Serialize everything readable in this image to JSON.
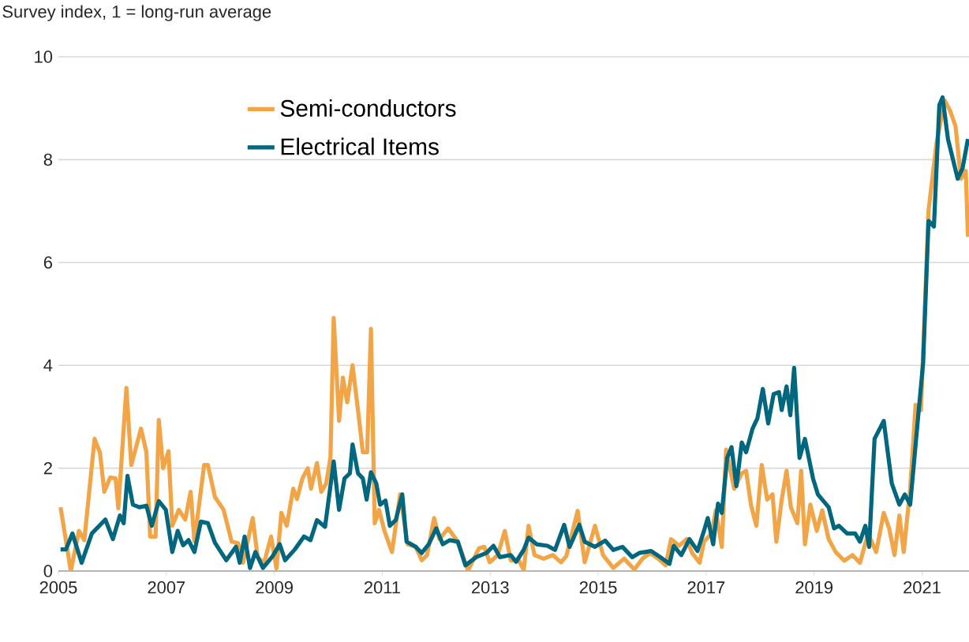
{
  "chart_data": {
    "type": "line",
    "ylabel": "Survey index, 1 = long-run average",
    "xlim": [
      2005,
      2021.87
    ],
    "xticks": [
      2005,
      2007,
      2009,
      2011,
      2013,
      2015,
      2017,
      2019,
      2021
    ],
    "ylim": [
      0,
      10
    ],
    "yticks": [
      0,
      2,
      4,
      6,
      8,
      10
    ],
    "grid": "y",
    "legend": "top left",
    "line_style": "solid",
    "marker": "none",
    "series": [
      {
        "name": "Semi-conductors",
        "color": "#f2a546",
        "x": [
          2005.04,
          2005.23,
          2005.38,
          2005.48,
          2005.67,
          2005.77,
          2005.85,
          2005.96,
          2006.06,
          2006.11,
          2006.26,
          2006.35,
          2006.53,
          2006.63,
          2006.7,
          2006.8,
          2006.86,
          2006.94,
          2007.04,
          2007.11,
          2007.23,
          2007.35,
          2007.45,
          2007.52,
          2007.7,
          2007.77,
          2007.9,
          2008.06,
          2008.21,
          2008.33,
          2008.42,
          2008.6,
          2008.69,
          2008.81,
          2008.94,
          2009.04,
          2009.13,
          2009.23,
          2009.35,
          2009.42,
          2009.52,
          2009.62,
          2009.68,
          2009.79,
          2009.87,
          2009.96,
          2010.04,
          2010.1,
          2010.2,
          2010.27,
          2010.35,
          2010.45,
          2010.55,
          2010.64,
          2010.72,
          2010.79,
          2010.86,
          2010.94,
          2011.04,
          2011.18,
          2011.33,
          2011.47,
          2011.62,
          2011.73,
          2011.83,
          2011.96,
          2012.06,
          2012.22,
          2012.4,
          2012.59,
          2012.79,
          2012.89,
          2012.99,
          2013.14,
          2013.27,
          2013.38,
          2013.53,
          2013.62,
          2013.71,
          2013.82,
          2013.99,
          2014.16,
          2014.31,
          2014.41,
          2014.62,
          2014.75,
          2014.94,
          2015.09,
          2015.28,
          2015.48,
          2015.67,
          2015.82,
          2015.96,
          2016.11,
          2016.25,
          2016.35,
          2016.5,
          2016.64,
          2016.74,
          2016.88,
          2016.96,
          2017.1,
          2017.18,
          2017.29,
          2017.37,
          2017.52,
          2017.66,
          2017.74,
          2017.83,
          2017.93,
          2018.03,
          2018.13,
          2018.23,
          2018.3,
          2018.4,
          2018.49,
          2018.57,
          2018.69,
          2018.76,
          2018.83,
          2018.93,
          2019.05,
          2019.15,
          2019.27,
          2019.4,
          2019.56,
          2019.71,
          2019.85,
          2020.0,
          2020.15,
          2020.29,
          2020.39,
          2020.49,
          2020.58,
          2020.66,
          2020.78,
          2020.88,
          2020.98,
          2021.12,
          2021.27,
          2021.42,
          2021.52,
          2021.62,
          2021.72,
          2021.81,
          2021.85
        ],
        "values": [
          1.24,
          0.0,
          0.78,
          0.6,
          2.57,
          2.3,
          1.54,
          1.82,
          1.8,
          1.22,
          3.56,
          2.06,
          2.77,
          2.31,
          0.67,
          0.67,
          2.94,
          2.0,
          2.33,
          0.88,
          1.19,
          1.0,
          1.54,
          0.58,
          2.06,
          2.06,
          1.44,
          1.19,
          0.57,
          0.54,
          0.16,
          1.03,
          0.27,
          0.16,
          0.67,
          0.05,
          1.13,
          0.88,
          1.6,
          1.4,
          1.8,
          2.0,
          1.6,
          2.1,
          1.54,
          1.7,
          2.2,
          4.92,
          2.92,
          3.76,
          3.28,
          4.0,
          3.13,
          2.31,
          2.31,
          4.71,
          0.93,
          1.19,
          0.78,
          0.37,
          1.49,
          0.52,
          0.47,
          0.21,
          0.31,
          1.03,
          0.62,
          0.83,
          0.57,
          0.01,
          0.44,
          0.47,
          0.17,
          0.31,
          0.78,
          0.21,
          0.21,
          0.02,
          0.88,
          0.31,
          0.24,
          0.31,
          0.17,
          0.29,
          1.17,
          0.17,
          0.88,
          0.31,
          0.06,
          0.24,
          0.03,
          0.24,
          0.35,
          0.24,
          0.11,
          0.62,
          0.49,
          0.62,
          0.35,
          0.16,
          0.57,
          0.73,
          1.18,
          0.47,
          2.36,
          1.6,
          1.9,
          1.95,
          1.29,
          0.88,
          2.06,
          1.39,
          1.49,
          0.57,
          1.39,
          1.95,
          1.24,
          0.93,
          1.95,
          0.52,
          1.29,
          0.78,
          1.18,
          0.62,
          0.37,
          0.2,
          0.31,
          0.16,
          0.73,
          0.37,
          1.13,
          0.83,
          0.31,
          1.08,
          0.37,
          1.6,
          3.23,
          3.13,
          7.01,
          8.34,
          9.15,
          8.95,
          8.65,
          7.63,
          7.78,
          6.5
        ]
      },
      {
        "name": "Electrical Items",
        "color": "#00677f",
        "x": [
          2005.04,
          2005.14,
          2005.26,
          2005.43,
          2005.62,
          2005.87,
          2006.01,
          2006.14,
          2006.21,
          2006.28,
          2006.38,
          2006.5,
          2006.63,
          2006.73,
          2006.86,
          2006.99,
          2007.11,
          2007.21,
          2007.31,
          2007.41,
          2007.52,
          2007.64,
          2007.77,
          2007.9,
          2008.11,
          2008.29,
          2008.36,
          2008.45,
          2008.55,
          2008.65,
          2008.79,
          2008.97,
          2009.1,
          2009.2,
          2009.38,
          2009.55,
          2009.67,
          2009.79,
          2009.94,
          2010.1,
          2010.2,
          2010.3,
          2010.4,
          2010.45,
          2010.55,
          2010.64,
          2010.71,
          2010.79,
          2010.89,
          2010.96,
          2011.06,
          2011.14,
          2011.25,
          2011.37,
          2011.45,
          2011.62,
          2011.73,
          2011.86,
          2012.0,
          2012.12,
          2012.25,
          2012.4,
          2012.54,
          2012.74,
          2012.93,
          2013.06,
          2013.18,
          2013.38,
          2013.48,
          2013.62,
          2013.71,
          2013.86,
          2014.06,
          2014.2,
          2014.37,
          2014.47,
          2014.65,
          2014.75,
          2014.94,
          2015.13,
          2015.28,
          2015.45,
          2015.63,
          2015.76,
          2015.98,
          2016.15,
          2016.32,
          2016.4,
          2016.54,
          2016.69,
          2016.84,
          2016.96,
          2017.03,
          2017.13,
          2017.22,
          2017.29,
          2017.39,
          2017.47,
          2017.56,
          2017.66,
          2017.74,
          2017.86,
          2017.95,
          2018.05,
          2018.15,
          2018.25,
          2018.35,
          2018.4,
          2018.49,
          2018.56,
          2018.63,
          2018.73,
          2018.83,
          2018.98,
          2019.07,
          2019.27,
          2019.37,
          2019.46,
          2019.61,
          2019.76,
          2019.85,
          2019.95,
          2020.02,
          2020.12,
          2020.29,
          2020.44,
          2020.58,
          2020.68,
          2020.78,
          2020.93,
          2021.02,
          2021.12,
          2021.22,
          2021.32,
          2021.38,
          2021.48,
          2021.66,
          2021.75,
          2021.85
        ],
        "values": [
          0.42,
          0.42,
          0.73,
          0.16,
          0.73,
          1.0,
          0.62,
          1.08,
          0.93,
          1.85,
          1.29,
          1.24,
          1.27,
          0.88,
          1.36,
          1.19,
          0.37,
          0.78,
          0.5,
          0.6,
          0.37,
          0.96,
          0.93,
          0.55,
          0.21,
          0.47,
          0.16,
          0.67,
          0.06,
          0.37,
          0.06,
          0.29,
          0.52,
          0.21,
          0.42,
          0.67,
          0.6,
          0.99,
          0.86,
          2.13,
          1.19,
          1.8,
          1.9,
          2.46,
          1.9,
          1.8,
          1.39,
          1.92,
          1.7,
          1.29,
          1.37,
          0.88,
          0.99,
          1.49,
          0.57,
          0.47,
          0.35,
          0.52,
          0.83,
          0.52,
          0.6,
          0.57,
          0.11,
          0.27,
          0.35,
          0.49,
          0.27,
          0.31,
          0.18,
          0.41,
          0.65,
          0.52,
          0.49,
          0.41,
          0.9,
          0.47,
          0.9,
          0.57,
          0.47,
          0.59,
          0.41,
          0.47,
          0.27,
          0.35,
          0.39,
          0.27,
          0.14,
          0.49,
          0.31,
          0.62,
          0.39,
          0.78,
          1.03,
          0.52,
          1.31,
          1.13,
          2.2,
          2.41,
          1.65,
          2.5,
          2.31,
          2.77,
          2.97,
          3.54,
          2.87,
          3.44,
          3.48,
          3.13,
          3.59,
          3.03,
          3.95,
          2.2,
          2.57,
          1.8,
          1.49,
          1.24,
          0.83,
          0.88,
          0.73,
          0.73,
          0.57,
          0.88,
          0.47,
          2.57,
          2.92,
          1.7,
          1.29,
          1.49,
          1.29,
          3.03,
          4.05,
          6.81,
          6.7,
          9.06,
          9.21,
          8.4,
          7.63,
          7.83,
          8.4
        ]
      }
    ]
  }
}
